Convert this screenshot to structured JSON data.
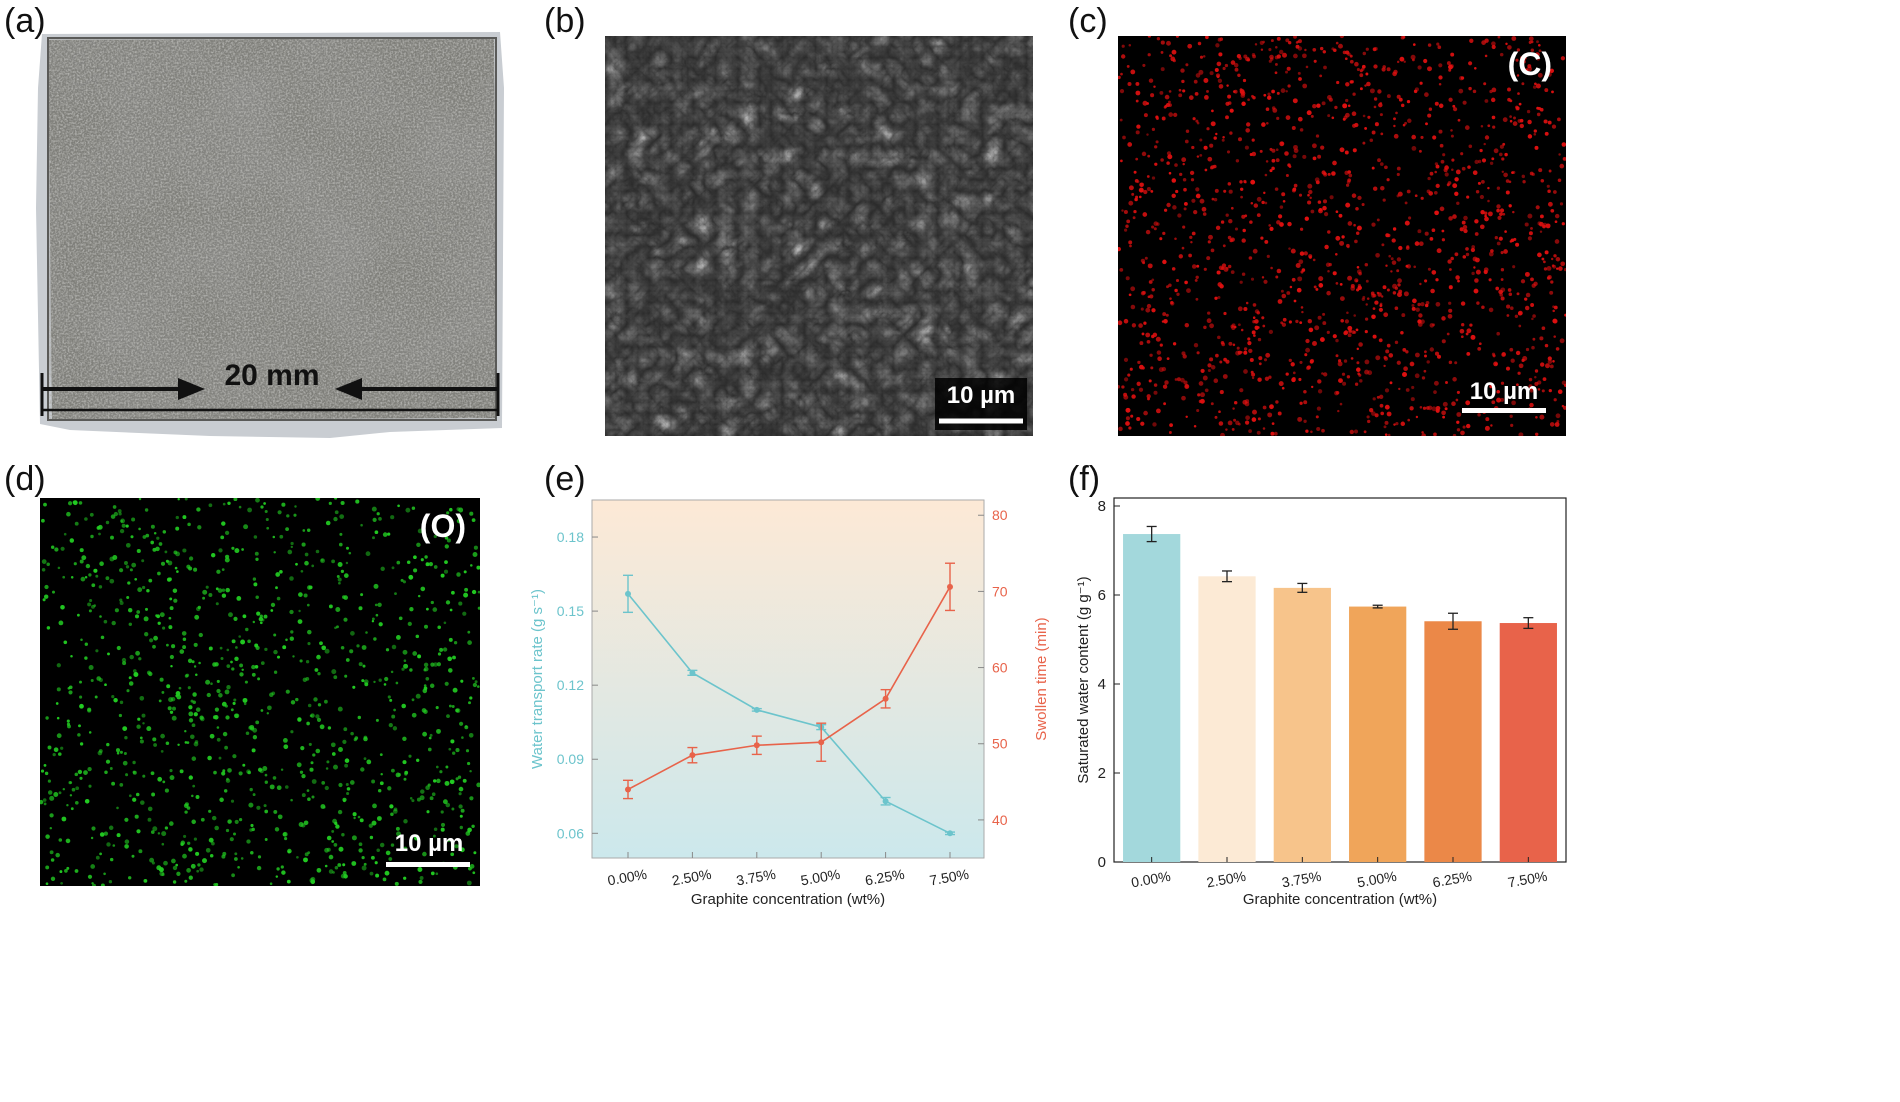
{
  "figure": {
    "panels": [
      {
        "label": "(a)"
      },
      {
        "label": "(b)"
      },
      {
        "label": "(c)"
      },
      {
        "label": "(d)"
      },
      {
        "label": "(e)"
      },
      {
        "label": "(f)"
      }
    ],
    "photo": {
      "dimension_text": "20 mm"
    },
    "sem": {
      "scale_text": "10 µm"
    },
    "map_c": {
      "element_text": "(C)",
      "scale_text": "10 µm",
      "dot_color": "#e01010"
    },
    "map_o": {
      "element_text": "(O)",
      "scale_text": "10 µm",
      "dot_color": "#22cc22"
    }
  },
  "chart_data": [
    {
      "type": "line",
      "categories": [
        "0.00%",
        "2.50%",
        "3.75%",
        "5.00%",
        "6.25%",
        "7.50%"
      ],
      "xlabel": "Graphite concentration (wt%)",
      "ylabel_left": "Water transport rate (g s⁻¹)",
      "ylabel_right": "Swollen time (min)",
      "ylim_left": [
        0.05,
        0.195
      ],
      "ylim_right": [
        35,
        82
      ],
      "yticks_left": [
        "0.06",
        "0.09",
        "0.12",
        "0.15",
        "0.18"
      ],
      "yticks_right": [
        "40",
        "50",
        "60",
        "70",
        "80"
      ],
      "series": [
        {
          "axis": "left",
          "color": "#6cc4cc",
          "values": [
            0.157,
            0.125,
            0.11,
            0.103,
            0.073,
            0.06
          ],
          "errors": [
            0.0075,
            0.001,
            0.0005,
            0.001,
            0.0015,
            0.0005
          ]
        },
        {
          "axis": "right",
          "color": "#e8634a",
          "values": [
            44,
            48.5,
            49.8,
            50.2,
            55.9,
            70.6
          ],
          "errors": [
            1.2,
            1.0,
            1.2,
            2.5,
            1.2,
            3.1
          ]
        }
      ],
      "grid": false
    },
    {
      "type": "bar",
      "categories": [
        "0.00%",
        "2.50%",
        "3.75%",
        "5.00%",
        "6.25%",
        "7.50%"
      ],
      "values": [
        7.37,
        6.42,
        6.16,
        5.74,
        5.41,
        5.37
      ],
      "errors": [
        0.17,
        0.12,
        0.1,
        0.03,
        0.18,
        0.12
      ],
      "colors": [
        "#a3d8dc",
        "#fcead5",
        "#f7c48b",
        "#f0a55a",
        "#eb8848",
        "#e8634a"
      ],
      "xlabel": "Graphite concentration (wt%)",
      "ylabel": "Saturated water content (g g⁻¹)",
      "ylim": [
        0,
        8
      ],
      "yticks": [
        "0",
        "2",
        "4",
        "6",
        "8"
      ],
      "grid": false
    }
  ]
}
